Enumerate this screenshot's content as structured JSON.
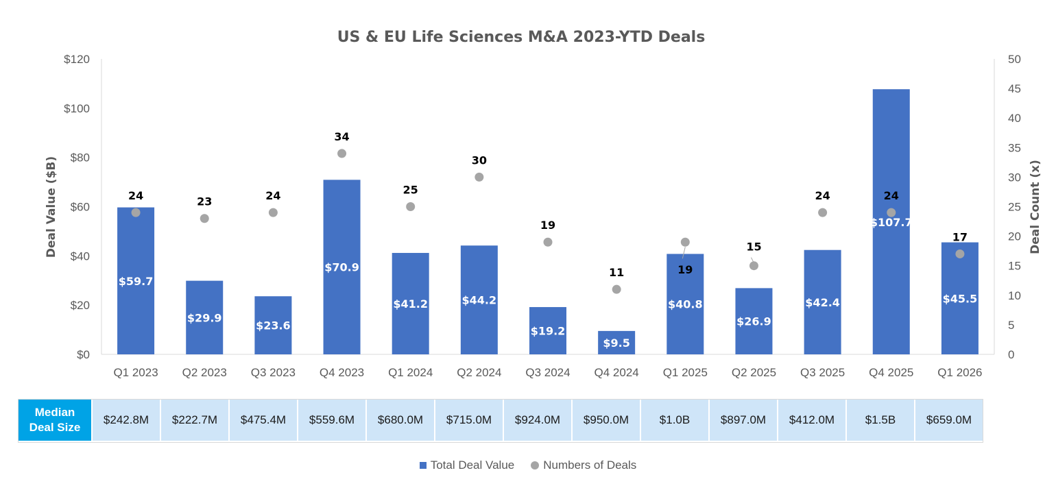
{
  "chart_data": {
    "type": "bar",
    "title": "US & EU Life Sciences M&A 2023-YTD Deals",
    "categories": [
      "Q1 2023",
      "Q2 2023",
      "Q3 2023",
      "Q4 2023",
      "Q1 2024",
      "Q2 2024",
      "Q3 2024",
      "Q4 2024",
      "Q1 2025",
      "Q2 2025",
      "Q3 2025",
      "Q4 2025",
      "Q1 2026"
    ],
    "series": [
      {
        "name": "Total Deal Value",
        "axis": "left",
        "kind": "bar",
        "values": [
          59.7,
          29.9,
          23.6,
          70.9,
          41.2,
          44.2,
          19.2,
          9.5,
          40.8,
          26.9,
          42.4,
          107.7,
          45.5
        ],
        "labels": [
          "$59.7",
          "$29.9",
          "$23.6",
          "$70.9",
          "$41.2",
          "$44.2",
          "$19.2",
          "$9.5",
          "$40.8",
          "$26.9",
          "$42.4",
          "$107.7",
          "$45.5"
        ]
      },
      {
        "name": "Numbers of Deals",
        "axis": "right",
        "kind": "scatter",
        "values": [
          24,
          23,
          24,
          34,
          25,
          30,
          19,
          11,
          19,
          15,
          24,
          24,
          17
        ],
        "labels": [
          "24",
          "23",
          "24",
          "34",
          "25",
          "30",
          "19",
          "11",
          "19",
          "15",
          "24",
          "24",
          "17"
        ]
      }
    ],
    "ylabel": "Deal Value ($B)",
    "ylim": [
      0,
      120
    ],
    "yticks": [
      "$0",
      "$20",
      "$40",
      "$60",
      "$80",
      "$100",
      "$120"
    ],
    "y2label": "Deal Count (x)",
    "y2lim": [
      0,
      50
    ],
    "y2ticks": [
      "0",
      "5",
      "10",
      "15",
      "20",
      "25",
      "30",
      "35",
      "40",
      "45",
      "50"
    ],
    "legend": [
      "Total Deal Value",
      "Numbers of Deals"
    ],
    "legend_position": "bottom",
    "grid": false
  },
  "median_table": {
    "header_line1": "Median",
    "header_line2": "Deal Size",
    "values": [
      "$242.8M",
      "$222.7M",
      "$475.4M",
      "$559.6M",
      "$680.0M",
      "$715.0M",
      "$924.0M",
      "$950.0M",
      "$1.0B",
      "$897.0M",
      "$412.0M",
      "$1.5B",
      "$659.0M"
    ]
  },
  "colors": {
    "bar": "#4472c4",
    "dot": "#a5a5a5",
    "table_header": "#00a3e6",
    "table_cell": "#cfe5f8"
  }
}
